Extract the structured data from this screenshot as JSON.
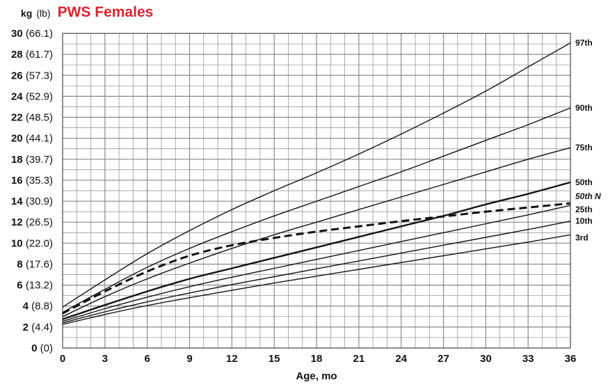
{
  "header": {
    "unit_kg": "kg",
    "unit_lb": "(lb)",
    "title": "PWS Females",
    "title_color": "#d9232e"
  },
  "chart_data": {
    "type": "line",
    "title": "PWS Females",
    "xlabel": "Age, mo",
    "ylabel": "kg (lb)",
    "xlim": [
      0,
      36
    ],
    "ylim": [
      0,
      30
    ],
    "grid": true,
    "x_ticks": [
      0,
      3,
      6,
      9,
      12,
      15,
      18,
      21,
      24,
      27,
      30,
      33,
      36
    ],
    "y_ticks": [
      {
        "kg": "0",
        "lb": "(0)"
      },
      {
        "kg": "2",
        "lb": "(4.4)"
      },
      {
        "kg": "4",
        "lb": "(8.8)"
      },
      {
        "kg": "6",
        "lb": "(13.2)"
      },
      {
        "kg": "8",
        "lb": "(17.6)"
      },
      {
        "kg": "10",
        "lb": "(22.0)"
      },
      {
        "kg": "12",
        "lb": "(26.5)"
      },
      {
        "kg": "14",
        "lb": "(30.9)"
      },
      {
        "kg": "16",
        "lb": "(35.3)"
      },
      {
        "kg": "18",
        "lb": "(39.7)"
      },
      {
        "kg": "20",
        "lb": "(44.1)"
      },
      {
        "kg": "22",
        "lb": "(48.5)"
      },
      {
        "kg": "24",
        "lb": "(52.9)"
      },
      {
        "kg": "26",
        "lb": "(57.3)"
      },
      {
        "kg": "28",
        "lb": "(61.7)"
      },
      {
        "kg": "30",
        "lb": "(66.1)"
      }
    ],
    "x": [
      0,
      3,
      6,
      9,
      12,
      15,
      18,
      21,
      24,
      27,
      30,
      33,
      36
    ],
    "series": [
      {
        "name": "97th",
        "style": "solid",
        "values": [
          3.9,
          6.5,
          9.0,
          11.2,
          13.2,
          15.0,
          16.7,
          18.5,
          20.4,
          22.4,
          24.5,
          26.8,
          29.1
        ]
      },
      {
        "name": "90th",
        "style": "solid",
        "values": [
          3.4,
          5.6,
          7.7,
          9.5,
          11.1,
          12.6,
          14.0,
          15.4,
          16.8,
          18.3,
          19.8,
          21.3,
          22.9
        ]
      },
      {
        "name": "75th",
        "style": "solid",
        "values": [
          3.0,
          4.9,
          6.6,
          8.1,
          9.5,
          10.8,
          12.0,
          13.2,
          14.4,
          15.6,
          16.8,
          18.0,
          19.1
        ]
      },
      {
        "name": "50th",
        "style": "bold",
        "values": [
          2.75,
          4.1,
          5.4,
          6.6,
          7.6,
          8.6,
          9.6,
          10.6,
          11.6,
          12.6,
          13.7,
          14.7,
          15.8
        ]
      },
      {
        "name": "25th",
        "style": "solid",
        "values": [
          2.55,
          3.75,
          4.85,
          5.85,
          6.75,
          7.6,
          8.45,
          9.3,
          10.15,
          11.0,
          11.85,
          12.7,
          13.6
        ]
      },
      {
        "name": "10th",
        "style": "solid",
        "values": [
          2.4,
          3.45,
          4.4,
          5.25,
          6.05,
          6.8,
          7.55,
          8.3,
          9.05,
          9.8,
          10.55,
          11.3,
          12.1
        ]
      },
      {
        "name": "3rd",
        "style": "solid",
        "values": [
          2.25,
          3.2,
          4.05,
          4.8,
          5.5,
          6.2,
          6.85,
          7.5,
          8.15,
          8.8,
          9.45,
          10.1,
          10.8
        ]
      },
      {
        "name": "50th N",
        "style": "dashed",
        "values": [
          3.3,
          5.4,
          7.3,
          8.8,
          9.8,
          10.5,
          11.1,
          11.6,
          12.1,
          12.55,
          13.0,
          13.4,
          13.8
        ]
      }
    ]
  }
}
